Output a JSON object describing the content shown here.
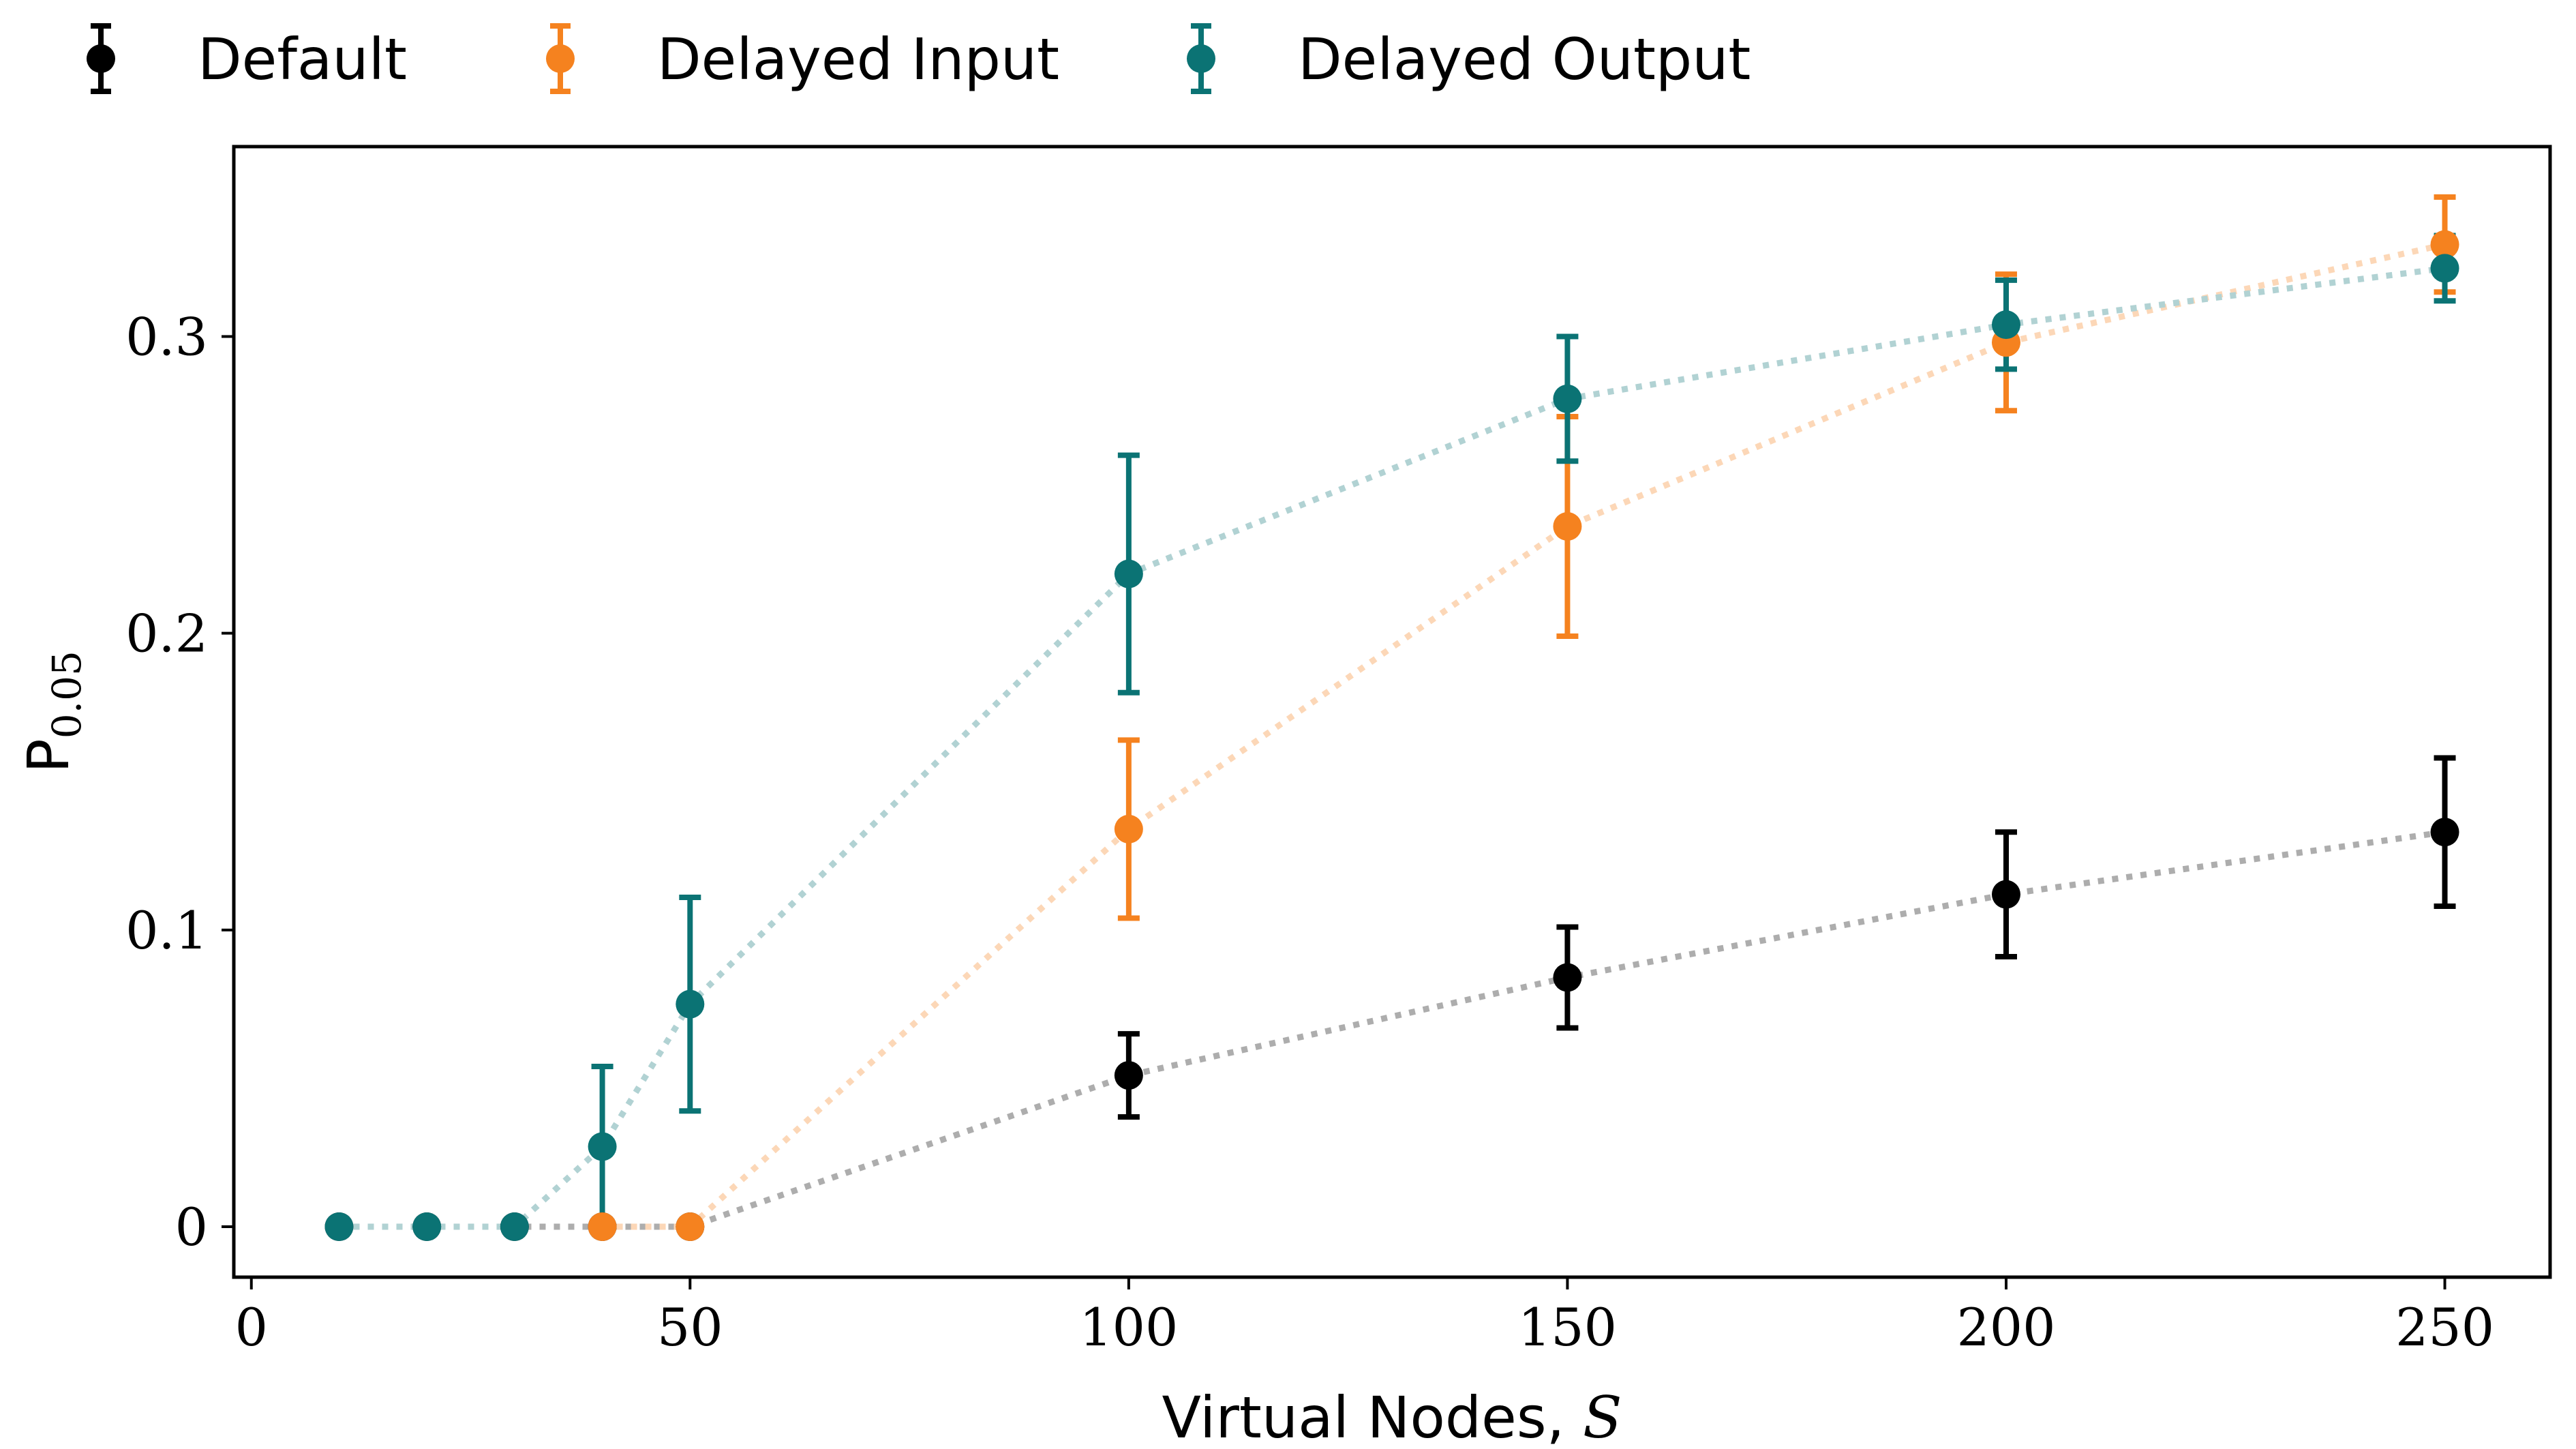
{
  "chart_data": {
    "type": "scatter",
    "xlabel_text": "Virtual Nodes, ",
    "xlabel_math": "S",
    "ylabel_main": "P",
    "ylabel_sub": "0.05",
    "xlim": [
      -2,
      262
    ],
    "ylim": [
      -0.017,
      0.364
    ],
    "xticks": [
      0,
      50,
      100,
      150,
      200,
      250
    ],
    "yticks": [
      0,
      0.1,
      0.2,
      0.3
    ],
    "ytick_labels": [
      "0",
      "0.1",
      "0.2",
      "0.3"
    ],
    "grid": false,
    "legend_position": "top",
    "series": [
      {
        "name": "Default",
        "color": "#000000",
        "x": [
          10,
          20,
          30,
          40,
          50,
          100,
          150,
          200,
          250
        ],
        "y": [
          0,
          0,
          0,
          0,
          0,
          0.051,
          0.084,
          0.112,
          0.133
        ],
        "err": [
          0,
          0,
          0,
          0,
          0,
          0.014,
          0.017,
          0.021,
          0.025
        ]
      },
      {
        "name": "Delayed Input",
        "color": "#f5821f",
        "x": [
          40,
          50,
          100,
          150,
          200,
          250
        ],
        "y": [
          0,
          0,
          0.134,
          0.236,
          0.298,
          0.331
        ],
        "err": [
          0,
          0,
          0.03,
          0.037,
          0.023,
          0.016
        ]
      },
      {
        "name": "Delayed Output",
        "color": "#0b7374",
        "x": [
          10,
          20,
          30,
          40,
          50,
          100,
          150,
          200,
          250
        ],
        "y": [
          0,
          0,
          0,
          0.027,
          0.075,
          0.22,
          0.279,
          0.304,
          0.323
        ],
        "err": [
          0,
          0,
          0,
          0.027,
          0.036,
          0.04,
          0.021,
          0.015,
          0.011
        ]
      }
    ]
  }
}
